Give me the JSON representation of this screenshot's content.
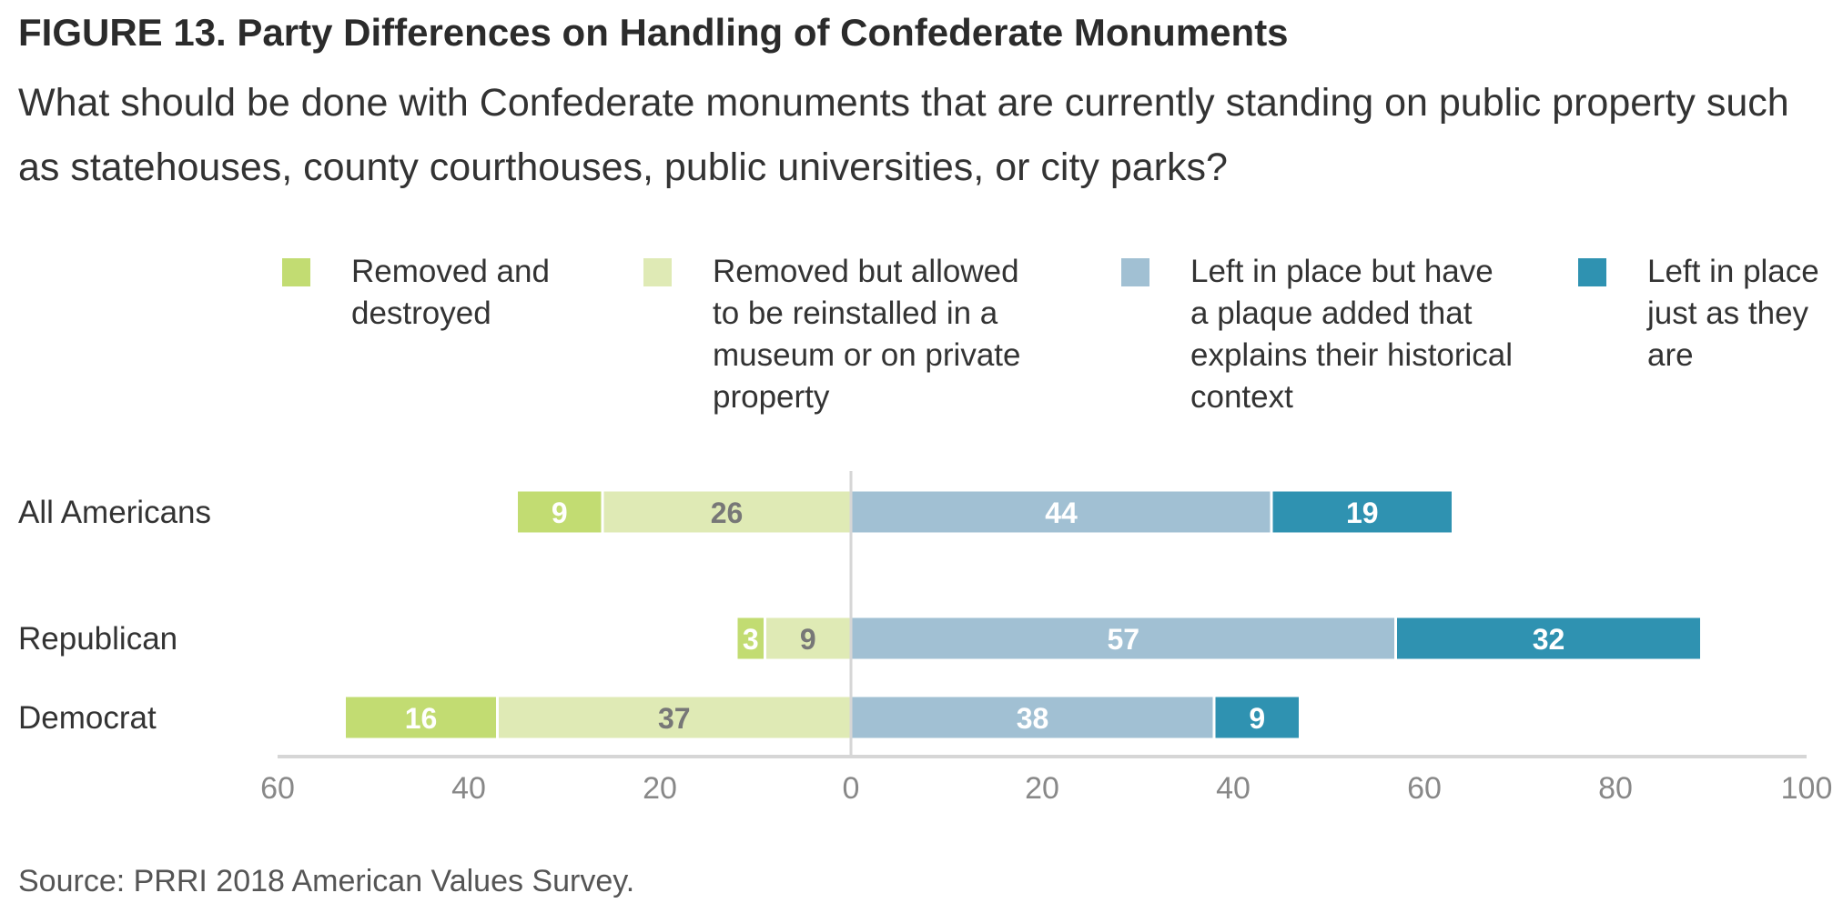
{
  "title": "FIGURE 13. Party Differences on Handling of Confederate Monuments",
  "subtitle": "What should be done with Confederate monuments that are currently standing on public property such as statehouses, county courthouses, public universities, or city parks?",
  "source": "Source: PRRI 2018 American Values Survey.",
  "chart_data": {
    "type": "bar",
    "orientation": "horizontal",
    "stacking": "diverging",
    "categories": [
      "All Americans",
      "Republican",
      "Democrat"
    ],
    "series": [
      {
        "name": "Removed and destroyed",
        "color": "#c2dc72",
        "side": "negative",
        "values": [
          9,
          3,
          16
        ]
      },
      {
        "name": "Removed but allowed to be reinstalled in a museum or on private property",
        "color": "#dfeab5",
        "side": "negative",
        "values": [
          26,
          9,
          37
        ]
      },
      {
        "name": "Left in place but have a plaque added that explains their historical context",
        "color": "#a1c0d3",
        "side": "positive",
        "values": [
          44,
          57,
          38
        ]
      },
      {
        "name": "Left in place just as they are",
        "color": "#2f92b1",
        "side": "positive",
        "values": [
          19,
          32,
          9
        ]
      }
    ],
    "xlim": [
      -60,
      100
    ],
    "x_ticks": [
      -60,
      -40,
      -20,
      0,
      20,
      40,
      60,
      80,
      100
    ],
    "x_tick_labels": [
      "60",
      "40",
      "20",
      "0",
      "20",
      "40",
      "60",
      "80",
      "100"
    ],
    "legend_position": "top",
    "grid": false
  }
}
